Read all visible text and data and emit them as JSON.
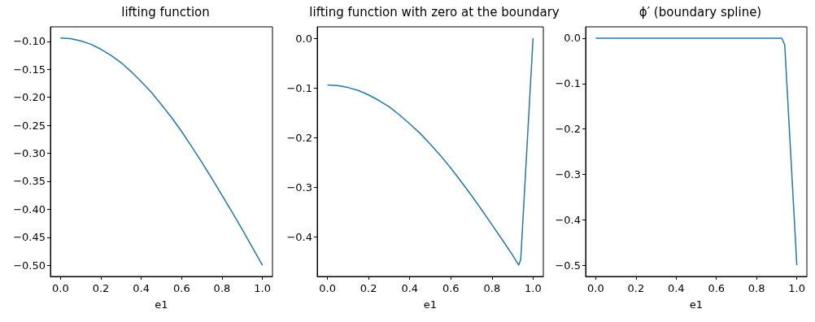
{
  "chart_data": [
    {
      "type": "line",
      "title": "lifting function",
      "xlabel": "e1",
      "x": [
        0,
        0.05,
        0.1,
        0.15,
        0.2,
        0.25,
        0.3,
        0.35,
        0.4,
        0.45,
        0.5,
        0.55,
        0.6,
        0.65,
        0.7,
        0.75,
        0.8,
        0.85,
        0.9,
        0.95,
        1.0
      ],
      "series": [
        {
          "color": "#1f77b4",
          "values": [
            -0.094,
            -0.095,
            -0.099,
            -0.105,
            -0.114,
            -0.125,
            -0.138,
            -0.154,
            -0.172,
            -0.191,
            -0.213,
            -0.236,
            -0.261,
            -0.288,
            -0.316,
            -0.345,
            -0.375,
            -0.405,
            -0.436,
            -0.468,
            -0.5
          ]
        }
      ],
      "xlim": [
        -0.05,
        1.05
      ],
      "xticks": [
        {
          "value": 0,
          "label": "0.0"
        },
        {
          "value": 0.2,
          "label": "0.2"
        },
        {
          "value": 0.4,
          "label": "0.4"
        },
        {
          "value": 0.6,
          "label": "0.6"
        },
        {
          "value": 0.8,
          "label": "0.8"
        },
        {
          "value": 1,
          "label": "1.0"
        }
      ],
      "ylim": [
        -0.52,
        -0.074
      ],
      "yticks": [
        {
          "value": -0.5,
          "label": "−0.50"
        },
        {
          "value": -0.45,
          "label": "−0.45"
        },
        {
          "value": -0.4,
          "label": "−0.40"
        },
        {
          "value": -0.35,
          "label": "−0.35"
        },
        {
          "value": -0.3,
          "label": "−0.30"
        },
        {
          "value": -0.25,
          "label": "−0.25"
        },
        {
          "value": -0.2,
          "label": "−0.20"
        },
        {
          "value": -0.15,
          "label": "−0.15"
        },
        {
          "value": -0.1,
          "label": "−0.10"
        }
      ],
      "grid": false
    },
    {
      "type": "line",
      "title": "lifting function with zero at the boundary",
      "xlabel": "e1",
      "x": [
        0,
        0.05,
        0.1,
        0.15,
        0.2,
        0.25,
        0.3,
        0.35,
        0.4,
        0.45,
        0.5,
        0.55,
        0.6,
        0.65,
        0.7,
        0.75,
        0.8,
        0.85,
        0.9,
        0.93,
        0.94,
        1.0
      ],
      "series": [
        {
          "color": "#1f77b4",
          "values": [
            -0.094,
            -0.095,
            -0.099,
            -0.105,
            -0.114,
            -0.125,
            -0.138,
            -0.154,
            -0.172,
            -0.191,
            -0.213,
            -0.236,
            -0.261,
            -0.288,
            -0.316,
            -0.345,
            -0.375,
            -0.405,
            -0.436,
            -0.456,
            -0.445,
            0
          ]
        }
      ],
      "xlim": [
        -0.05,
        1.05
      ],
      "xticks": [
        {
          "value": 0,
          "label": "0.0"
        },
        {
          "value": 0.2,
          "label": "0.2"
        },
        {
          "value": 0.4,
          "label": "0.4"
        },
        {
          "value": 0.6,
          "label": "0.6"
        },
        {
          "value": 0.8,
          "label": "0.8"
        },
        {
          "value": 1,
          "label": "1.0"
        }
      ],
      "ylim": [
        -0.479,
        0.023
      ],
      "yticks": [
        {
          "value": -0.4,
          "label": "−0.4"
        },
        {
          "value": -0.3,
          "label": "−0.3"
        },
        {
          "value": -0.2,
          "label": "−0.2"
        },
        {
          "value": -0.1,
          "label": "−0.1"
        },
        {
          "value": 0,
          "label": "0.0"
        }
      ],
      "grid": false
    },
    {
      "type": "line",
      "title": "ϕ′ (boundary spline)",
      "xlabel": "e1",
      "x": [
        0,
        0.925,
        0.94,
        1.0
      ],
      "series": [
        {
          "color": "#1f77b4",
          "values": [
            0,
            0,
            -0.015,
            -0.5
          ]
        }
      ],
      "xlim": [
        -0.05,
        1.05
      ],
      "xticks": [
        {
          "value": 0,
          "label": "0.0"
        },
        {
          "value": 0.2,
          "label": "0.2"
        },
        {
          "value": 0.4,
          "label": "0.4"
        },
        {
          "value": 0.6,
          "label": "0.6"
        },
        {
          "value": 0.8,
          "label": "0.8"
        },
        {
          "value": 1,
          "label": "1.0"
        }
      ],
      "ylim": [
        -0.525,
        0.025
      ],
      "yticks": [
        {
          "value": -0.5,
          "label": "−0.5"
        },
        {
          "value": -0.4,
          "label": "−0.4"
        },
        {
          "value": -0.3,
          "label": "−0.3"
        },
        {
          "value": -0.2,
          "label": "−0.2"
        },
        {
          "value": -0.1,
          "label": "−0.1"
        },
        {
          "value": 0,
          "label": "0.0"
        }
      ],
      "grid": false
    }
  ]
}
